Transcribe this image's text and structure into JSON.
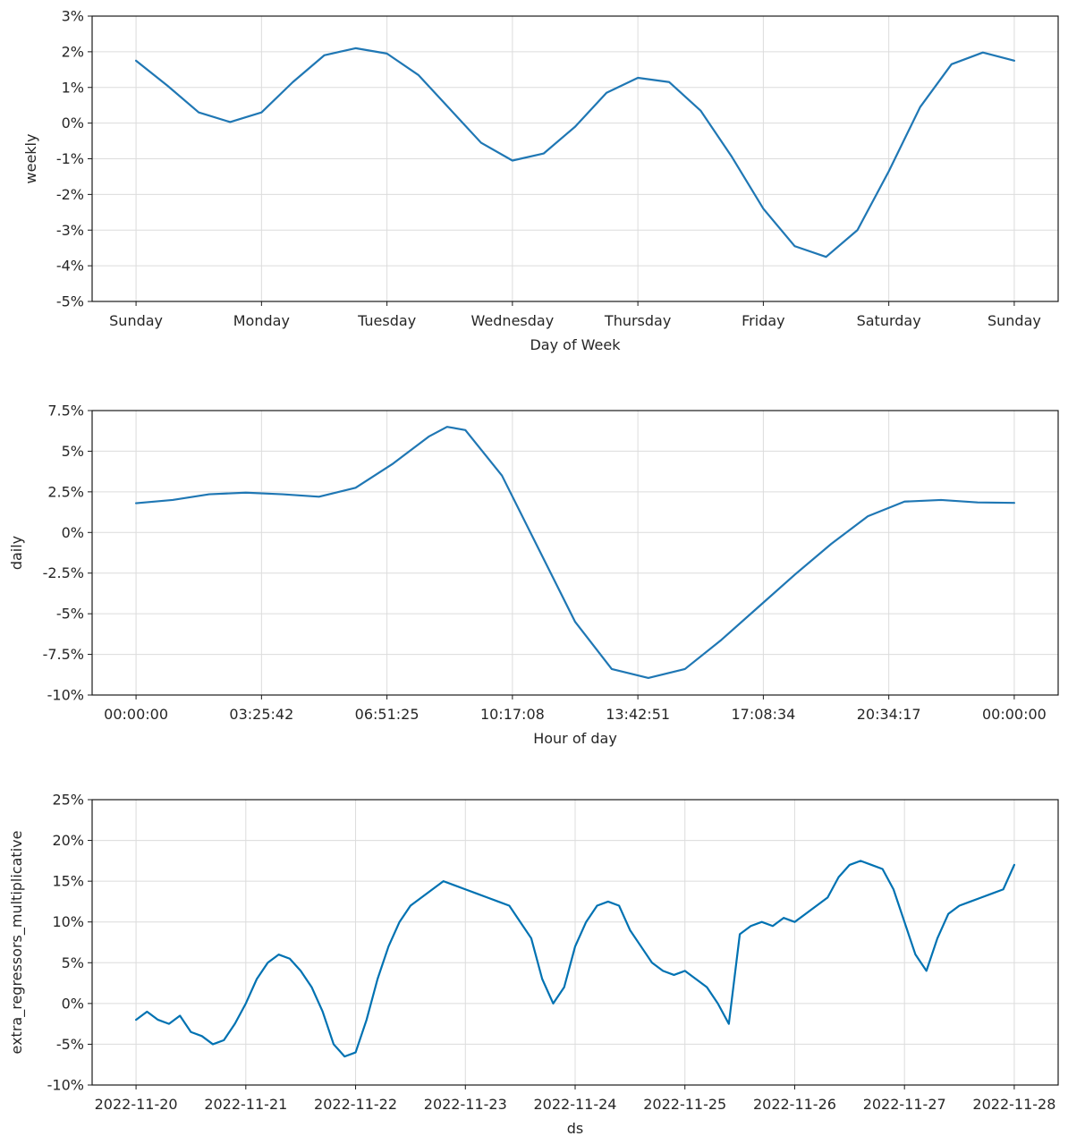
{
  "colors": {
    "series": "#1f77b4",
    "series_dark": "#0072b2"
  },
  "chart_data": [
    {
      "type": "line",
      "xlabel": "Day of Week",
      "ylabel": "weekly",
      "ylim": [
        -0.05,
        0.03
      ],
      "xlim": [
        -0.35,
        7.35
      ],
      "grid": true,
      "y_tick_values": [
        0.03,
        0.02,
        0.01,
        0,
        -0.01,
        -0.02,
        -0.03,
        -0.04,
        -0.05
      ],
      "y_tick_labels": [
        "3%",
        "2%",
        "1%",
        "0%",
        "-1%",
        "-2%",
        "-3%",
        "-4%",
        "-5%"
      ],
      "x_tick_values": [
        0,
        1,
        2,
        3,
        4,
        5,
        6,
        7
      ],
      "x_tick_labels": [
        "Sunday",
        "Monday",
        "Tuesday",
        "Wednesday",
        "Thursday",
        "Friday",
        "Saturday",
        "Sunday"
      ],
      "series": [
        {
          "x": [
            0,
            0.25,
            0.5,
            0.75,
            1.0,
            1.25,
            1.5,
            1.75,
            2.0,
            2.25,
            2.5,
            2.75,
            3.0,
            3.25,
            3.5,
            3.75,
            4.0,
            4.25,
            4.5,
            4.75,
            5.0,
            5.25,
            5.5,
            5.75,
            6.0,
            6.25,
            6.5,
            6.75,
            7.0
          ],
          "values": [
            0.0175,
            0.0105,
            0.003,
            0.0003,
            0.003,
            0.0115,
            0.019,
            0.021,
            0.0195,
            0.0135,
            0.004,
            -0.0055,
            -0.0105,
            -0.0085,
            -0.001,
            0.0085,
            0.0127,
            0.0115,
            0.0035,
            -0.0095,
            -0.024,
            -0.0345,
            -0.0375,
            -0.03,
            -0.0135,
            0.0045,
            0.0165,
            0.0198,
            0.0175
          ]
        }
      ]
    },
    {
      "type": "line",
      "xlabel": "Hour of day",
      "ylabel": "daily",
      "ylim": [
        -0.1,
        0.075
      ],
      "xlim": [
        -1.2,
        25.2
      ],
      "grid": true,
      "y_tick_values": [
        0.075,
        0.05,
        0.025,
        0,
        -0.025,
        -0.05,
        -0.075,
        -0.1
      ],
      "y_tick_labels": [
        "7.5%",
        "5%",
        "2.5%",
        "0%",
        "-2.5%",
        "-5%",
        "-7.5%",
        "-10%"
      ],
      "x_tick_values": [
        0,
        3.4286,
        6.8571,
        10.2857,
        13.7143,
        17.1429,
        20.5714,
        24
      ],
      "x_tick_labels": [
        "00:00:00",
        "03:25:42",
        "06:51:25",
        "10:17:08",
        "13:42:51",
        "17:08:34",
        "20:34:17",
        "00:00:00"
      ],
      "series": [
        {
          "x": [
            0,
            1,
            2,
            3,
            4,
            5,
            6,
            7,
            8,
            8.5,
            9,
            10,
            11,
            12,
            13,
            14,
            15,
            16,
            17,
            18,
            19,
            20,
            21,
            22,
            23,
            24
          ],
          "values": [
            0.018,
            0.02,
            0.0235,
            0.0245,
            0.0235,
            0.022,
            0.0275,
            0.042,
            0.059,
            0.065,
            0.063,
            0.035,
            -0.01,
            -0.055,
            -0.084,
            -0.0895,
            -0.084,
            -0.066,
            -0.046,
            -0.026,
            -0.007,
            0.01,
            0.019,
            0.02,
            0.0185,
            0.0182
          ]
        }
      ]
    },
    {
      "type": "line",
      "xlabel": "ds",
      "ylabel": "extra_regressors_multiplicative",
      "ylim": [
        -0.1,
        0.25
      ],
      "xlim": [
        -0.4,
        8.4
      ],
      "grid": true,
      "y_tick_values": [
        0.25,
        0.2,
        0.15,
        0.1,
        0.05,
        0,
        -0.05,
        -0.1
      ],
      "y_tick_labels": [
        "25%",
        "20%",
        "15%",
        "10%",
        "5%",
        "0%",
        "-5%",
        "-10%"
      ],
      "x_tick_values": [
        0,
        1,
        2,
        3,
        4,
        5,
        6,
        7,
        8
      ],
      "x_tick_labels": [
        "2022-11-20",
        "2022-11-21",
        "2022-11-22",
        "2022-11-23",
        "2022-11-24",
        "2022-11-25",
        "2022-11-26",
        "2022-11-27",
        "2022-11-28"
      ],
      "series": [
        {
          "x": [
            0,
            0.1,
            0.2,
            0.3,
            0.4,
            0.5,
            0.6,
            0.7,
            0.8,
            0.9,
            1.0,
            1.1,
            1.2,
            1.3,
            1.4,
            1.5,
            1.6,
            1.7,
            1.8,
            1.9,
            2.0,
            2.1,
            2.2,
            2.3,
            2.4,
            2.5,
            2.6,
            2.7,
            2.8,
            2.9,
            3.0,
            3.1,
            3.2,
            3.3,
            3.4,
            3.5,
            3.6,
            3.7,
            3.8,
            3.9,
            4.0,
            4.1,
            4.2,
            4.3,
            4.4,
            4.5,
            4.6,
            4.7,
            4.8,
            4.9,
            5.0,
            5.1,
            5.2,
            5.3,
            5.4,
            5.5,
            5.6,
            5.7,
            5.8,
            5.9,
            6.0,
            6.1,
            6.2,
            6.3,
            6.4,
            6.5,
            6.6,
            6.7,
            6.8,
            6.9,
            7.0,
            7.1,
            7.2,
            7.3,
            7.4,
            7.5,
            7.6,
            7.7,
            7.8,
            7.9,
            8.0
          ],
          "values": [
            -0.02,
            -0.01,
            -0.02,
            -0.025,
            -0.015,
            -0.035,
            -0.04,
            -0.05,
            -0.045,
            -0.025,
            0.0,
            0.03,
            0.05,
            0.06,
            0.055,
            0.04,
            0.02,
            -0.01,
            -0.05,
            -0.065,
            -0.06,
            -0.02,
            0.03,
            0.07,
            0.1,
            0.12,
            0.13,
            0.14,
            0.15,
            0.145,
            0.14,
            0.135,
            0.13,
            0.125,
            0.12,
            0.1,
            0.08,
            0.03,
            0.0,
            0.02,
            0.07,
            0.1,
            0.12,
            0.125,
            0.12,
            0.09,
            0.07,
            0.05,
            0.04,
            0.035,
            0.04,
            0.03,
            0.02,
            0.0,
            -0.025,
            0.085,
            0.095,
            0.1,
            0.095,
            0.105,
            0.1,
            0.11,
            0.12,
            0.13,
            0.155,
            0.17,
            0.175,
            0.17,
            0.165,
            0.14,
            0.1,
            0.06,
            0.04,
            0.08,
            0.11,
            0.12,
            0.125,
            0.13,
            0.135,
            0.14,
            0.17
          ]
        }
      ]
    }
  ]
}
